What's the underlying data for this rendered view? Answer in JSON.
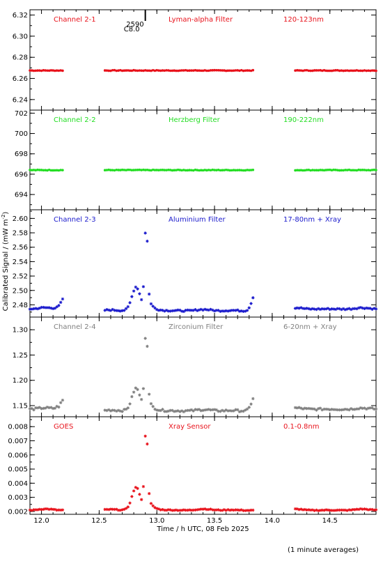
{
  "chart_data": {
    "type": "scatter",
    "x_axis": {
      "label": "Time / h UTC, 08 Feb 2025",
      "range": [
        11.9,
        14.9
      ],
      "ticks": [
        12.0,
        12.5,
        13.0,
        13.5,
        14.0,
        14.5
      ],
      "tick_labels": [
        "12.0",
        "12.5",
        "13.0",
        "13.5",
        "14.0",
        "14.5"
      ]
    },
    "y_axis_label": "Calibrated Signal / (mW m",
    "y_axis_label_sup": "-2",
    "y_axis_label_end": ")",
    "footnote": "(1 minute averages)",
    "marker_annotation": {
      "x": 12.9,
      "line1": "2590",
      "line2": "C8.0"
    },
    "gaps": [
      [
        12.2,
        12.55
      ],
      [
        13.85,
        14.2
      ]
    ],
    "panels": [
      {
        "id": "ch21",
        "name": "Channel 2-1",
        "filter": "Lyman-alpha Filter",
        "band": "120-123nm",
        "color": "#e8121b",
        "ylim": [
          6.23,
          6.325
        ],
        "ticks": [
          6.24,
          6.26,
          6.28,
          6.3,
          6.32
        ],
        "tick_labels": [
          "6.24",
          "6.26",
          "6.28",
          "6.30",
          "6.32"
        ],
        "baseline": 6.2675,
        "flare_peak": 0,
        "noise": 0.0003,
        "marker": "dot"
      },
      {
        "id": "ch22",
        "name": "Channel 2-2",
        "filter": "Herzberg Filter",
        "band": "190-222nm",
        "color": "#22dd22",
        "ylim": [
          692.5,
          702.3
        ],
        "ticks": [
          694,
          696,
          698,
          700,
          702
        ],
        "tick_labels": [
          "694",
          "696",
          "698",
          "700",
          "702"
        ],
        "baseline": 696.4,
        "flare_peak": 0,
        "noise": 0.03,
        "marker": "dot"
      },
      {
        "id": "ch23",
        "name": "Channel 2-3",
        "filter": "Aluminium Filter",
        "band": "17-80nm + Xray",
        "color": "#1a1acc",
        "ylim": [
          2.463,
          2.612
        ],
        "ticks": [
          2.48,
          2.5,
          2.52,
          2.54,
          2.56,
          2.58,
          2.6
        ],
        "tick_labels": [
          "2.48",
          "2.50",
          "2.52",
          "2.54",
          "2.56",
          "2.58",
          "2.60"
        ],
        "baseline": 2.472,
        "flare_peak": 2.595,
        "noise": 0.001,
        "marker": "star"
      },
      {
        "id": "ch24",
        "name": "Channel 2-4",
        "filter": "Zirconium Filter",
        "band": "6-20nm + Xray",
        "color": "#808080",
        "ylim": [
          1.128,
          1.325
        ],
        "ticks": [
          1.15,
          1.2,
          1.25,
          1.3
        ],
        "tick_labels": [
          "1.15",
          "1.20",
          "1.25",
          "1.30"
        ],
        "baseline": 1.14,
        "flare_peak": 1.305,
        "noise": 0.002,
        "marker": "star"
      },
      {
        "id": "goes",
        "name": "GOES",
        "filter": "Xray Sensor",
        "band": "0.1-0.8nm",
        "color": "#e8121b",
        "ylim": [
          0.0018,
          0.0087
        ],
        "ticks": [
          0.002,
          0.003,
          0.004,
          0.005,
          0.006,
          0.007,
          0.008
        ],
        "tick_labels": [
          "0.002",
          "0.003",
          "0.004",
          "0.005",
          "0.006",
          "0.007",
          "0.008"
        ],
        "baseline": 0.0021,
        "flare_peak": 0.0081,
        "noise": 3e-05,
        "marker": "star"
      }
    ]
  }
}
